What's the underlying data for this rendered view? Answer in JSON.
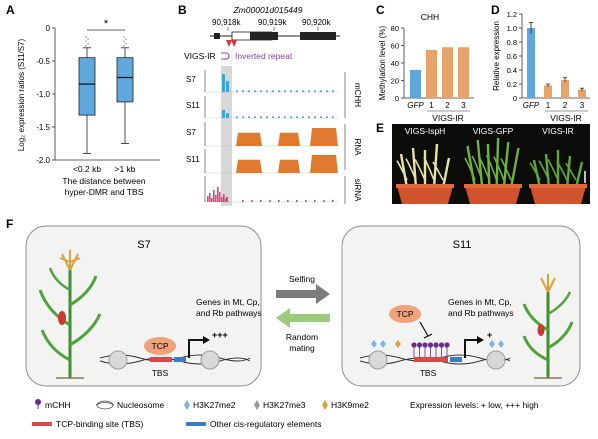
{
  "panels": {
    "a": "A",
    "b": "B",
    "c": "C",
    "d": "D",
    "e": "E",
    "f": "F"
  },
  "chart_data": [
    {
      "panel": "A",
      "type": "box",
      "ylabel": "Log₂ expression ratios (S11/S7)",
      "ylim": [
        -2.0,
        0
      ],
      "yticks": [
        "-2.0",
        "-1.5",
        "-1.0",
        "-0.5",
        "0"
      ],
      "categories": [
        "<0.2 kb",
        ">1 kb"
      ],
      "boxes": [
        {
          "name": "<0.2 kb",
          "whisker_low": -1.9,
          "q1": -1.32,
          "median": -0.85,
          "q3": -0.45,
          "whisker_high": -0.3
        },
        {
          "name": ">1 kb",
          "whisker_low": -1.75,
          "q1": -1.12,
          "median": -0.75,
          "q3": -0.45,
          "whisker_high": -0.3
        }
      ],
      "significance": "*",
      "xlabel_lines": [
        "The distance between",
        "hyper-DMR and TBS"
      ],
      "colors": {
        "box": "#5fa8dd",
        "outlier": "#aaaaaa"
      }
    },
    {
      "panel": "C",
      "type": "bar",
      "title": "CHH",
      "ylabel": "Methylation level (%)",
      "ylim": [
        0,
        80
      ],
      "yticks": [
        "0",
        "20",
        "40",
        "60",
        "80"
      ],
      "categories": [
        "GFP",
        "1",
        "2",
        "3"
      ],
      "values": [
        32,
        55,
        58,
        58
      ],
      "group_label": "VIGS-IR",
      "colors": {
        "control": "#5fa8dd",
        "treatment": "#e8a36a"
      }
    },
    {
      "panel": "D",
      "type": "bar",
      "ylabel": "Relative expression",
      "ylim": [
        0,
        1.2
      ],
      "yticks": [
        "0",
        "0.2",
        "0.4",
        "0.6",
        "0.8",
        "1.0",
        "1.2"
      ],
      "categories": [
        "GFP",
        "1",
        "2",
        "3"
      ],
      "values": [
        1.0,
        0.18,
        0.26,
        0.12
      ],
      "errors": [
        0.08,
        0.02,
        0.03,
        0.02
      ],
      "group_label": "VIGS-IR",
      "colors": {
        "control": "#5fa8dd",
        "treatment": "#e8a36a"
      }
    }
  ],
  "panel_b": {
    "gene": "Zm00001d015449",
    "coords": [
      "90,918k",
      "90,919k",
      "90,920k"
    ],
    "construct": "VIGS-IR",
    "construct_note": "Inverted repeat",
    "row_labels": [
      "S7",
      "S11",
      "S7",
      "S11",
      ""
    ],
    "side_labels": [
      "mCHH",
      "RNA",
      "siRNA"
    ],
    "colors": {
      "mchh": "#3aa6d8",
      "rna": "#e07a2e",
      "sirna": "#d9467d",
      "highlight": "#cfcfcf",
      "construct": "#8b3fa8"
    }
  },
  "panel_e": {
    "labels": [
      "VIGS-IspH",
      "VIGS-GFP",
      "VIGS-IR"
    ]
  },
  "panel_f": {
    "left_title": "S7",
    "right_title": "S11",
    "selfing": "Selfing",
    "random_mating": "Random mating",
    "tcp": "TCP",
    "tbs": "TBS",
    "genes_text": [
      "Genes in Mt, Cp,",
      "and Rb pathways"
    ],
    "left_level": "+++",
    "right_level": "+",
    "legend": {
      "mchh": "mCHH",
      "nucleosome": "Nucleosome",
      "h3k27me2": "H3K27me2",
      "h3k27me3": "H3K27me3",
      "h3k9me2": "H3K9me2",
      "expression": "Expression levels: + low, +++ high",
      "tbs": "TCP-binding site (TBS)",
      "cis": "Other cis-regulatory elements"
    }
  }
}
